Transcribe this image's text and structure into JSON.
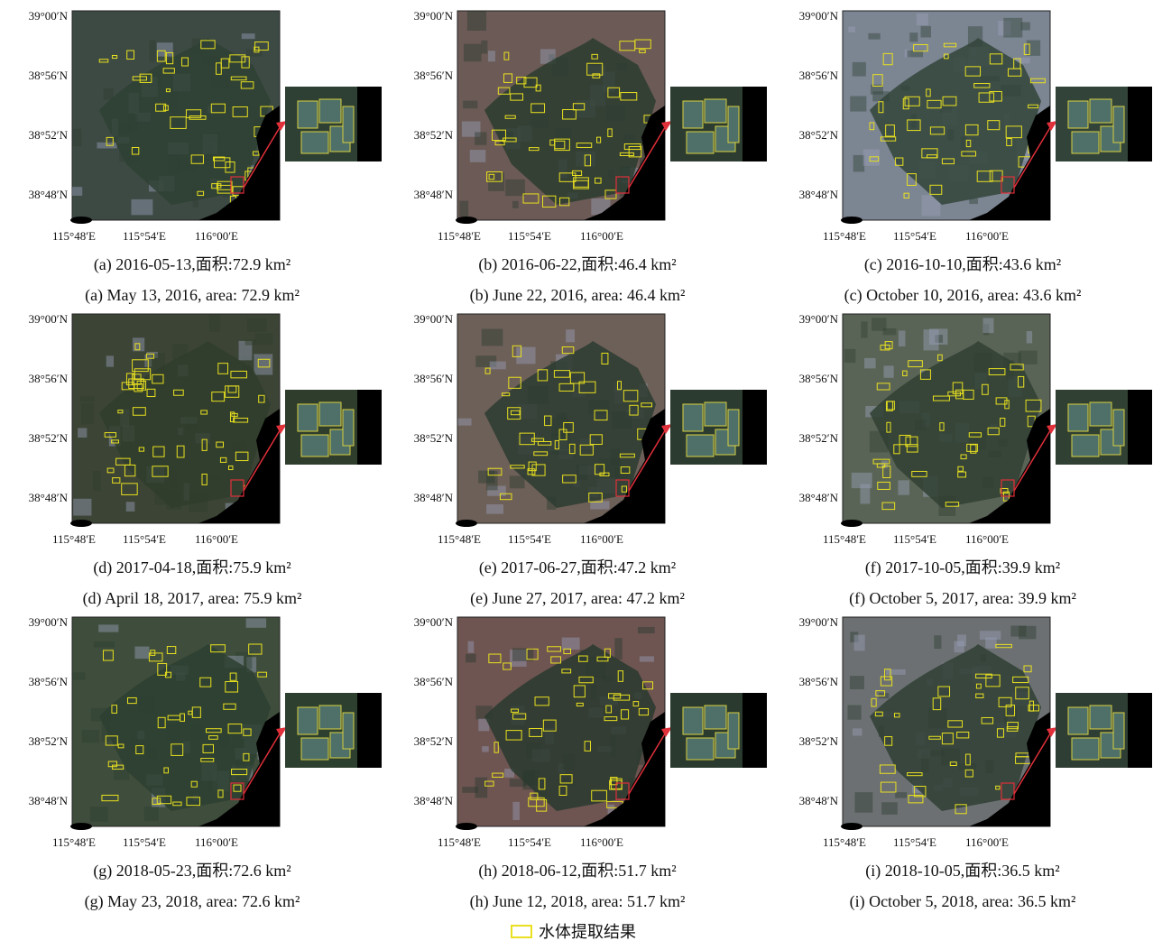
{
  "axes": {
    "lat_labels": [
      "39°00′N",
      "38°56′N",
      "38°52′N",
      "38°48′N"
    ],
    "lon_labels": [
      "115°48′E",
      "115°54′E",
      "116°00′E"
    ]
  },
  "panels": [
    {
      "caption_cn": "(a) 2016-05-13,面积:72.9 km²",
      "caption_en": "(a) May 13, 2016, area: 72.9 km²"
    },
    {
      "caption_cn": "(b) 2016-06-22,面积:46.4 km²",
      "caption_en": "(b) June 22, 2016, area: 46.4 km²"
    },
    {
      "caption_cn": "(c) 2016-10-10,面积:43.6 km²",
      "caption_en": "(c) October 10, 2016, area: 43.6 km²"
    },
    {
      "caption_cn": "(d) 2017-04-18,面积:75.9 km²",
      "caption_en": "(d) April 18, 2017, area: 75.9 km²"
    },
    {
      "caption_cn": "(e) 2017-06-27,面积:47.2 km²",
      "caption_en": "(e) June 27, 2017, area: 47.2 km²"
    },
    {
      "caption_cn": "(f) 2017-10-05,面积:39.9 km²",
      "caption_en": "(f) October 5, 2017, area: 39.9 km²"
    },
    {
      "caption_cn": "(g) 2018-05-23,面积:72.6 km²",
      "caption_en": "(g) May 23, 2018, area: 72.6 km²"
    },
    {
      "caption_cn": "(h) 2018-06-12,面积:51.7 km²",
      "caption_en": "(h) June 12, 2018, area: 51.7 km²"
    },
    {
      "caption_cn": "(i) 2018-10-05,面积:36.5 km²",
      "caption_en": "(i) October 5, 2018, area: 36.5 km²"
    }
  ],
  "legend": {
    "label": "水体提取结果"
  }
}
